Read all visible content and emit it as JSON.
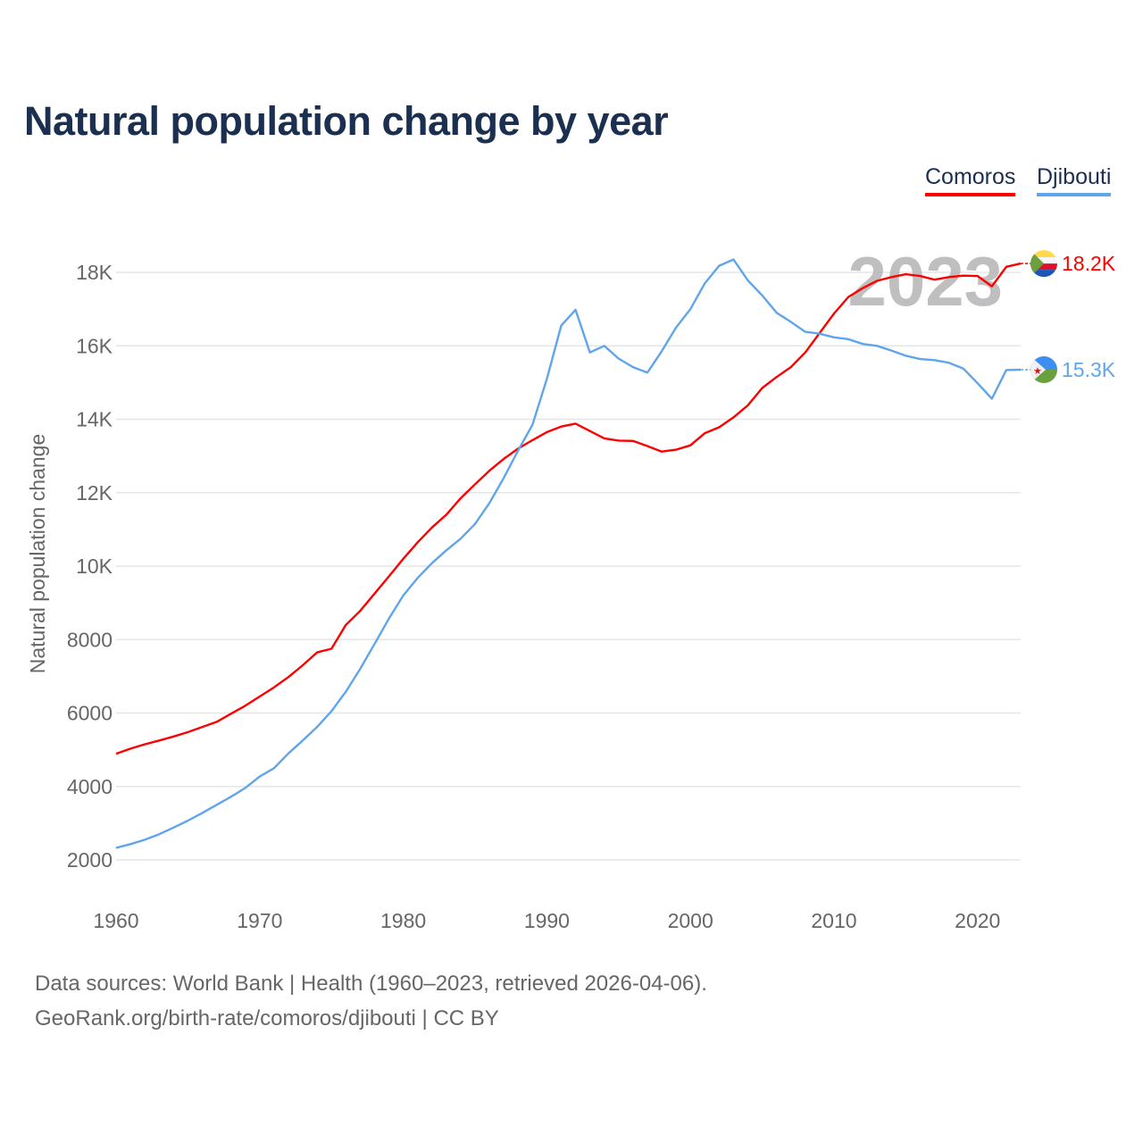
{
  "chart_data": {
    "type": "line",
    "title": "Natural population change by year",
    "xlabel": "",
    "ylabel": "Natural population change",
    "xlim": [
      1960,
      2023
    ],
    "ylim": [
      2000,
      18000
    ],
    "yticks": [
      2000,
      4000,
      6000,
      8000,
      10000,
      12000,
      14000,
      16000,
      18000
    ],
    "ytick_labels": [
      "2000",
      "4000",
      "6000",
      "8000",
      "10K",
      "12K",
      "14K",
      "16K",
      "18K"
    ],
    "xticks": [
      1960,
      1970,
      1980,
      1990,
      2000,
      2010,
      2020
    ],
    "xtick_labels": [
      "1960",
      "1970",
      "1980",
      "1990",
      "2000",
      "2010",
      "2020"
    ],
    "grid": true,
    "legend_position": "top-right",
    "year_watermark": "2023",
    "x": [
      1960,
      1961,
      1962,
      1963,
      1964,
      1965,
      1966,
      1967,
      1968,
      1969,
      1970,
      1971,
      1972,
      1973,
      1974,
      1975,
      1976,
      1977,
      1978,
      1979,
      1980,
      1981,
      1982,
      1983,
      1984,
      1985,
      1986,
      1987,
      1988,
      1989,
      1990,
      1991,
      1992,
      1993,
      1994,
      1995,
      1996,
      1997,
      1998,
      1999,
      2000,
      2001,
      2002,
      2003,
      2004,
      2005,
      2006,
      2007,
      2008,
      2009,
      2010,
      2011,
      2012,
      2013,
      2014,
      2015,
      2016,
      2017,
      2018,
      2019,
      2020,
      2021,
      2022,
      2023
    ],
    "series": [
      {
        "name": "Comoros",
        "color": "#ff0000",
        "end_label": "18.2K",
        "values": [
          4890,
          5030,
          5150,
          5250,
          5360,
          5480,
          5620,
          5760,
          5980,
          6200,
          6450,
          6700,
          6980,
          7300,
          7650,
          7750,
          8400,
          8780,
          9250,
          9720,
          10200,
          10650,
          11050,
          11400,
          11850,
          12230,
          12600,
          12920,
          13200,
          13430,
          13650,
          13800,
          13880,
          13680,
          13480,
          13420,
          13410,
          13270,
          13120,
          13170,
          13290,
          13620,
          13780,
          14050,
          14380,
          14850,
          15150,
          15420,
          15820,
          16350,
          16880,
          17330,
          17570,
          17770,
          17870,
          17950,
          17900,
          17800,
          17870,
          17910,
          17900,
          17620,
          18150,
          18240
        ]
      },
      {
        "name": "Djibouti",
        "color": "#60a5eb",
        "end_label": "15.3K",
        "values": [
          2330,
          2430,
          2550,
          2700,
          2880,
          3070,
          3280,
          3500,
          3720,
          3960,
          4270,
          4500,
          4900,
          5250,
          5620,
          6050,
          6580,
          7200,
          7880,
          8570,
          9200,
          9680,
          10080,
          10430,
          10750,
          11150,
          11720,
          12400,
          13150,
          13850,
          15100,
          16550,
          16980,
          15820,
          16000,
          15650,
          15420,
          15270,
          15850,
          16500,
          17000,
          17700,
          18180,
          18350,
          17780,
          17370,
          16900,
          16650,
          16380,
          16330,
          16230,
          16180,
          16050,
          16000,
          15870,
          15730,
          15640,
          15610,
          15540,
          15380,
          14980,
          14560,
          15340,
          15350
        ]
      }
    ]
  },
  "sources": {
    "line1": "Data sources: World Bank | Health (1960–2023, retrieved 2026-04-06).",
    "line2": "GeoRank.org/birth-rate/comoros/djibouti | CC BY"
  }
}
